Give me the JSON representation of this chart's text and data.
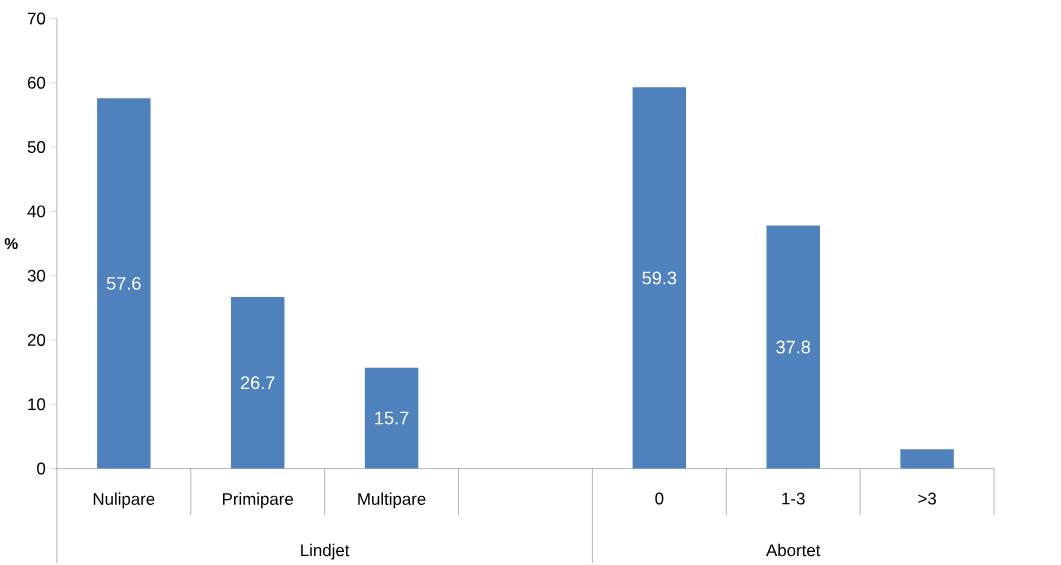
{
  "chart_data": {
    "type": "bar",
    "ylabel": "%",
    "categories": [
      "Nulipare",
      "Primipare",
      "Multipare",
      null,
      "0",
      "1-3",
      ">3"
    ],
    "values": [
      57.6,
      26.7,
      15.7,
      null,
      59.3,
      37.8,
      3
    ],
    "value_labels": [
      "57.6",
      "26.7",
      "15.7",
      null,
      "59.3",
      "37.8",
      null
    ],
    "color": "#4f81bd",
    "ylim": [
      0,
      70
    ],
    "yticks": [
      0,
      10,
      20,
      30,
      40,
      50,
      60,
      70
    ],
    "grid": false,
    "annotations": [
      "Lindjet",
      "Abortet"
    ]
  }
}
